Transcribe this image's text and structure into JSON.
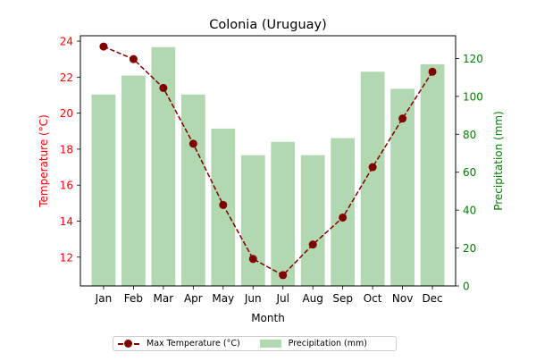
{
  "chart_data": {
    "type": "bar+line",
    "title": "Colonia (Uruguay)",
    "xlabel": "Month",
    "categories": [
      "Jan",
      "Feb",
      "Mar",
      "Apr",
      "May",
      "Jun",
      "Jul",
      "Aug",
      "Sep",
      "Oct",
      "Nov",
      "Dec"
    ],
    "y_left": {
      "label": "Temperature (°C)",
      "range": [
        10.4,
        24.3
      ],
      "ticks": [
        12,
        14,
        16,
        18,
        20,
        22,
        24
      ],
      "color": "#ff0000"
    },
    "y_right": {
      "label": "Precipitation (mm)",
      "range": [
        0,
        132
      ],
      "ticks": [
        0,
        20,
        40,
        60,
        80,
        100,
        120
      ],
      "color": "#008000"
    },
    "series": [
      {
        "name": "Max Temperature (°C)",
        "type": "line",
        "axis": "left",
        "color": "#800000",
        "style": "dashed",
        "marker": "circle",
        "values": [
          23.7,
          23.0,
          21.4,
          18.3,
          14.9,
          11.9,
          11.0,
          12.7,
          14.2,
          17.0,
          19.7,
          22.3
        ]
      },
      {
        "name": "Precipitation (mm)",
        "type": "bar",
        "axis": "right",
        "color": "#b2d8b2",
        "values": [
          101,
          111,
          126,
          101,
          83,
          69,
          76,
          69,
          78,
          113,
          104,
          117
        ]
      }
    ],
    "legend": "bottom-center",
    "grid": false
  }
}
